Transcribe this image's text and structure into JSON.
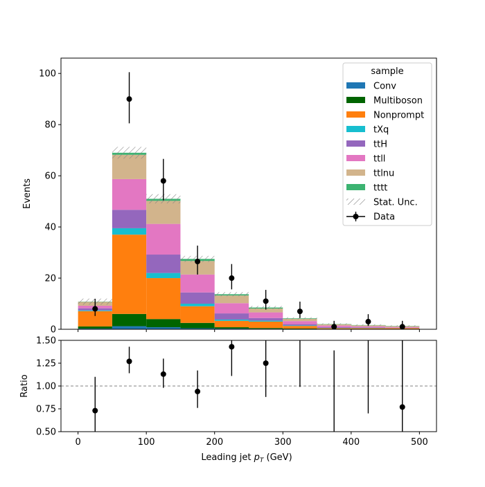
{
  "chart_data": {
    "type": "bar",
    "stacked": true,
    "bin_edges": [
      0,
      50,
      100,
      150,
      200,
      250,
      300,
      350,
      400,
      450,
      500
    ],
    "x_ticks": [
      0,
      100,
      200,
      300,
      400,
      500
    ],
    "xlim": [
      -25,
      525
    ],
    "xlabel_prefix": "Leading jet",
    "xlabel_var": "p",
    "xlabel_sub": "T",
    "xlabel_unit": "(GeV)",
    "main": {
      "ylabel": "Events",
      "ylim": [
        0,
        106
      ],
      "y_ticks": [
        0,
        20,
        40,
        60,
        80,
        100
      ]
    },
    "ratio": {
      "ylabel": "Ratio",
      "ylim": [
        0.5,
        1.5
      ],
      "y_ticks": [
        0.5,
        0.75,
        1.0,
        1.25,
        1.5
      ],
      "y_tick_labels": [
        "0.50",
        "0.75",
        "1.00",
        "1.25",
        "1.50"
      ],
      "reference_line": 1.0,
      "points": [
        0.73,
        1.27,
        1.13,
        0.94,
        1.43,
        1.25,
        null,
        null,
        null,
        0.77
      ],
      "err_low": [
        0.73,
        0.13,
        0.15,
        0.18,
        0.32,
        0.37,
        null,
        null,
        null,
        0.77
      ],
      "err_high": [
        0.37,
        0.16,
        0.17,
        0.23,
        0.38,
        0.43,
        null,
        null,
        null,
        0.93
      ],
      "bars_only": [
        {
          "bin": 6,
          "low": 0.99,
          "high": 1.5
        },
        {
          "bin": 7,
          "low": 0.5,
          "high": 1.39
        },
        {
          "bin": 8,
          "low": 0.7,
          "high": 1.5
        }
      ]
    },
    "legend": {
      "title": "sample",
      "placement": "top-right"
    },
    "series": [
      {
        "name": "Conv",
        "color": "#1f77b4",
        "values": [
          0.3,
          1.2,
          0.8,
          0.4,
          0.3,
          0.2,
          0.1,
          0.05,
          0.05,
          0.05
        ]
      },
      {
        "name": "Multiboson",
        "color": "#006400",
        "values": [
          0.8,
          4.8,
          3.2,
          2.1,
          0.5,
          0.3,
          0.2,
          0.1,
          0.1,
          0.1
        ]
      },
      {
        "name": "Nonprompt",
        "color": "#ff7f0e",
        "values": [
          6.0,
          31.0,
          16.0,
          6.5,
          2.5,
          2.5,
          1.0,
          0.3,
          0.3,
          0.3
        ]
      },
      {
        "name": "tXq",
        "color": "#17becf",
        "values": [
          0.3,
          2.5,
          2.0,
          1.0,
          0.5,
          0.4,
          0.2,
          0.1,
          0.1,
          0.05
        ]
      },
      {
        "name": "ttH",
        "color": "#9467bd",
        "values": [
          0.8,
          7.2,
          7.2,
          4.4,
          2.4,
          1.0,
          0.5,
          0.3,
          0.2,
          0.1
        ]
      },
      {
        "name": "ttll",
        "color": "#e377c2",
        "values": [
          1.0,
          12.0,
          12.0,
          7.0,
          4.0,
          2.2,
          1.2,
          0.6,
          0.4,
          0.3
        ]
      },
      {
        "name": "ttlnu",
        "color": "#d2b48c",
        "values": [
          1.5,
          9.5,
          9.0,
          5.3,
          3.0,
          1.5,
          0.9,
          0.5,
          0.4,
          0.3
        ]
      },
      {
        "name": "tttt",
        "color": "#3cb371",
        "values": [
          0.1,
          0.8,
          0.8,
          0.8,
          0.5,
          0.4,
          0.2,
          0.1,
          0.1,
          0.1
        ]
      }
    ],
    "stat_unc": {
      "name": "Stat. Unc.",
      "values": [
        1.2,
        2.3,
        1.8,
        1.2,
        0.8,
        0.6,
        0.4,
        0.3,
        0.3,
        0.25
      ]
    },
    "data": {
      "name": "Data",
      "values": [
        8,
        90,
        58,
        26.5,
        20,
        11,
        7,
        1,
        3,
        1
      ],
      "err_low": [
        2.8,
        9.5,
        7.6,
        5.1,
        4.4,
        3.3,
        2.6,
        1.0,
        1.7,
        1.0
      ],
      "err_high": [
        3.9,
        10.5,
        8.6,
        6.2,
        5.5,
        4.4,
        3.8,
        2.3,
        2.9,
        2.3
      ]
    }
  }
}
